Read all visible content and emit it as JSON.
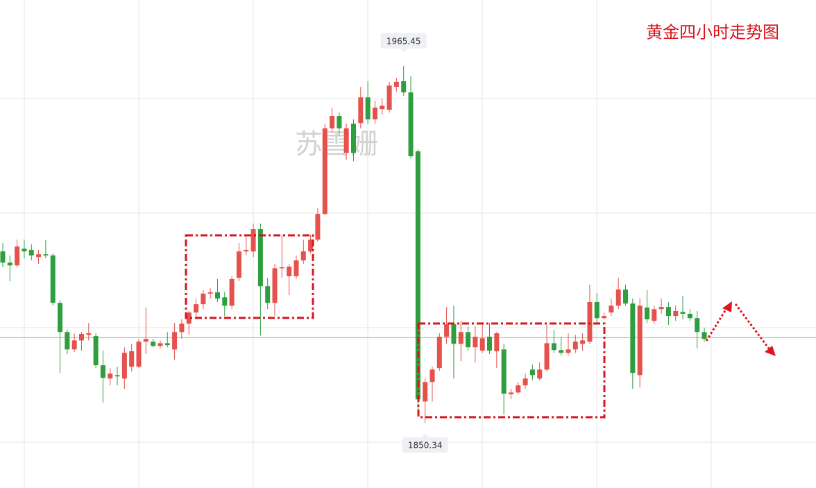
{
  "chart_data": {
    "type": "candlestick",
    "title": "黄金四小时走势图",
    "watermark": "苏雪姗",
    "open": [
      1905.6,
      1902.0,
      1901.1,
      1906.5,
      1906.1,
      1903.8,
      1904.7,
      1904.3,
      1889.0,
      1879.6,
      1874.0,
      1876.9,
      1878.7,
      1878.3,
      1868.9,
      1864.6,
      1865.7,
      1864.6,
      1868.4,
      1868.4,
      1876.5,
      1876.5,
      1875.1,
      1876.0,
      1874.0,
      1879.6,
      1882.3,
      1885.9,
      1888.6,
      1892.0,
      1892.4,
      1890.8,
      1888.1,
      1897.1,
      1905.6,
      1905.6,
      1912.8,
      1894.4,
      1889.0,
      1900.2,
      1897.6,
      1897.6,
      1902.7,
      1905.6,
      1909.4,
      1917.7,
      1945.3,
      1949.3,
      1937.4,
      1946.8,
      1947.0,
      1955.3,
      1948.2,
      1951.5,
      1951.3,
      1958.7,
      1960.5,
      1956.9,
      1937.9,
      1857.2,
      1863.5,
      1868.0,
      1878.1,
      1882.1,
      1875.8,
      1879.6,
      1874.7,
      1873.6,
      1878.1,
      1873.4,
      1874.0,
      1859.5,
      1860.1,
      1862.4,
      1867.5,
      1864.6,
      1867.5,
      1876.0,
      1873.8,
      1872.9,
      1874.0,
      1875.8,
      1876.5,
      1889.3,
      1884.1,
      1885.9,
      1888.1,
      1893.3,
      1888.8,
      1865.7,
      1887.5,
      1883.2,
      1887.0,
      1887.7,
      1884.8,
      1886.1,
      1885.5,
      1884.1,
      1879.6
    ],
    "high": [
      1908.3,
      1904.3,
      1909.4,
      1909.4,
      1907.9,
      1906.1,
      1909.2,
      1904.9,
      1889.9,
      1880.3,
      1879.2,
      1879.6,
      1882.5,
      1879.2,
      1873.6,
      1868.0,
      1868.4,
      1874.7,
      1875.8,
      1877.4,
      1887.5,
      1877.4,
      1876.9,
      1879.6,
      1882.5,
      1883.7,
      1886.4,
      1890.4,
      1893.1,
      1893.7,
      1896.7,
      1892.6,
      1897.6,
      1908.3,
      1910.5,
      1914.6,
      1914.6,
      1897.1,
      1901.6,
      1911.0,
      1901.6,
      1904.3,
      1909.4,
      1911.0,
      1919.5,
      1946.8,
      1952.0,
      1950.4,
      1946.8,
      1948.2,
      1958.7,
      1960.5,
      1954.2,
      1954.9,
      1960.3,
      1961.6,
      1965.45,
      1962.1,
      1938.5,
      1864.6,
      1868.4,
      1879.2,
      1887.7,
      1888.1,
      1883.2,
      1881.4,
      1881.4,
      1882.5,
      1882.5,
      1879.6,
      1875.8,
      1861.3,
      1863.5,
      1866.2,
      1869.1,
      1869.8,
      1881.9,
      1880.3,
      1878.1,
      1879.2,
      1878.7,
      1879.2,
      1894.9,
      1892.2,
      1885.9,
      1890.4,
      1897.1,
      1894.9,
      1890.4,
      1890.4,
      1893.1,
      1888.1,
      1890.4,
      1889.3,
      1888.1,
      1891.3,
      1887.0,
      1886.4,
      1881.0
    ],
    "low": [
      1900.5,
      1896.0,
      1900.5,
      1903.4,
      1902.7,
      1901.6,
      1903.4,
      1888.1,
      1866.4,
      1872.5,
      1873.1,
      1873.6,
      1876.9,
      1868.0,
      1856.8,
      1862.4,
      1862.4,
      1861.3,
      1866.9,
      1868.0,
      1872.5,
      1874.7,
      1874.3,
      1874.7,
      1870.7,
      1877.4,
      1878.7,
      1884.1,
      1887.0,
      1890.4,
      1889.3,
      1884.8,
      1887.0,
      1896.0,
      1904.3,
      1903.8,
      1878.5,
      1887.0,
      1884.8,
      1897.1,
      1891.5,
      1896.7,
      1901.6,
      1904.9,
      1908.8,
      1917.3,
      1944.1,
      1943.0,
      1935.2,
      1934.7,
      1945.3,
      1946.8,
      1946.8,
      1949.7,
      1950.4,
      1957.1,
      1955.8,
      1935.6,
      1854.5,
      1850.34,
      1857.2,
      1867.1,
      1875.8,
      1864.6,
      1870.2,
      1873.6,
      1869.8,
      1872.9,
      1872.5,
      1868.0,
      1853.0,
      1857.9,
      1859.5,
      1861.3,
      1864.0,
      1864.0,
      1866.9,
      1872.9,
      1872.0,
      1872.0,
      1872.9,
      1873.6,
      1875.8,
      1882.5,
      1883.7,
      1884.8,
      1887.0,
      1888.1,
      1861.3,
      1861.7,
      1882.5,
      1882.3,
      1885.5,
      1881.9,
      1883.2,
      1883.7,
      1883.2,
      1874.3,
      1876.5
    ],
    "close": [
      1902.0,
      1901.1,
      1907.2,
      1905.6,
      1904.3,
      1904.7,
      1904.3,
      1889.0,
      1879.6,
      1874.0,
      1876.9,
      1879.0,
      1879.2,
      1868.9,
      1864.8,
      1866.2,
      1865.3,
      1872.9,
      1873.4,
      1876.5,
      1877.4,
      1875.1,
      1876.0,
      1875.4,
      1879.6,
      1882.3,
      1885.9,
      1888.6,
      1892.0,
      1892.4,
      1890.4,
      1888.1,
      1896.7,
      1905.6,
      1906.1,
      1912.8,
      1894.4,
      1889.0,
      1900.2,
      1900.5,
      1900.7,
      1902.7,
      1905.6,
      1909.4,
      1917.7,
      1945.3,
      1949.3,
      1945.3,
      1945.3,
      1937.4,
      1955.3,
      1948.2,
      1952.0,
      1952.6,
      1959.1,
      1960.3,
      1956.9,
      1936.3,
      1857.9,
      1863.5,
      1867.5,
      1878.1,
      1882.1,
      1875.8,
      1879.6,
      1874.7,
      1878.1,
      1877.6,
      1873.6,
      1879.2,
      1859.7,
      1860.1,
      1862.4,
      1864.6,
      1865.7,
      1867.5,
      1876.0,
      1873.8,
      1872.9,
      1874.0,
      1876.5,
      1876.9,
      1889.3,
      1884.1,
      1884.8,
      1888.1,
      1893.3,
      1888.8,
      1866.4,
      1888.1,
      1883.7,
      1887.0,
      1887.7,
      1884.8,
      1886.4,
      1885.5,
      1884.1,
      1879.6,
      1877.4
    ],
    "up_color": "#e5514c",
    "down_color": "#2e9e3e",
    "ylim": [
      1829.3,
      1986.7
    ],
    "price_line": 1877.8,
    "price_line_color": "#8fcf8f"
  }
}
